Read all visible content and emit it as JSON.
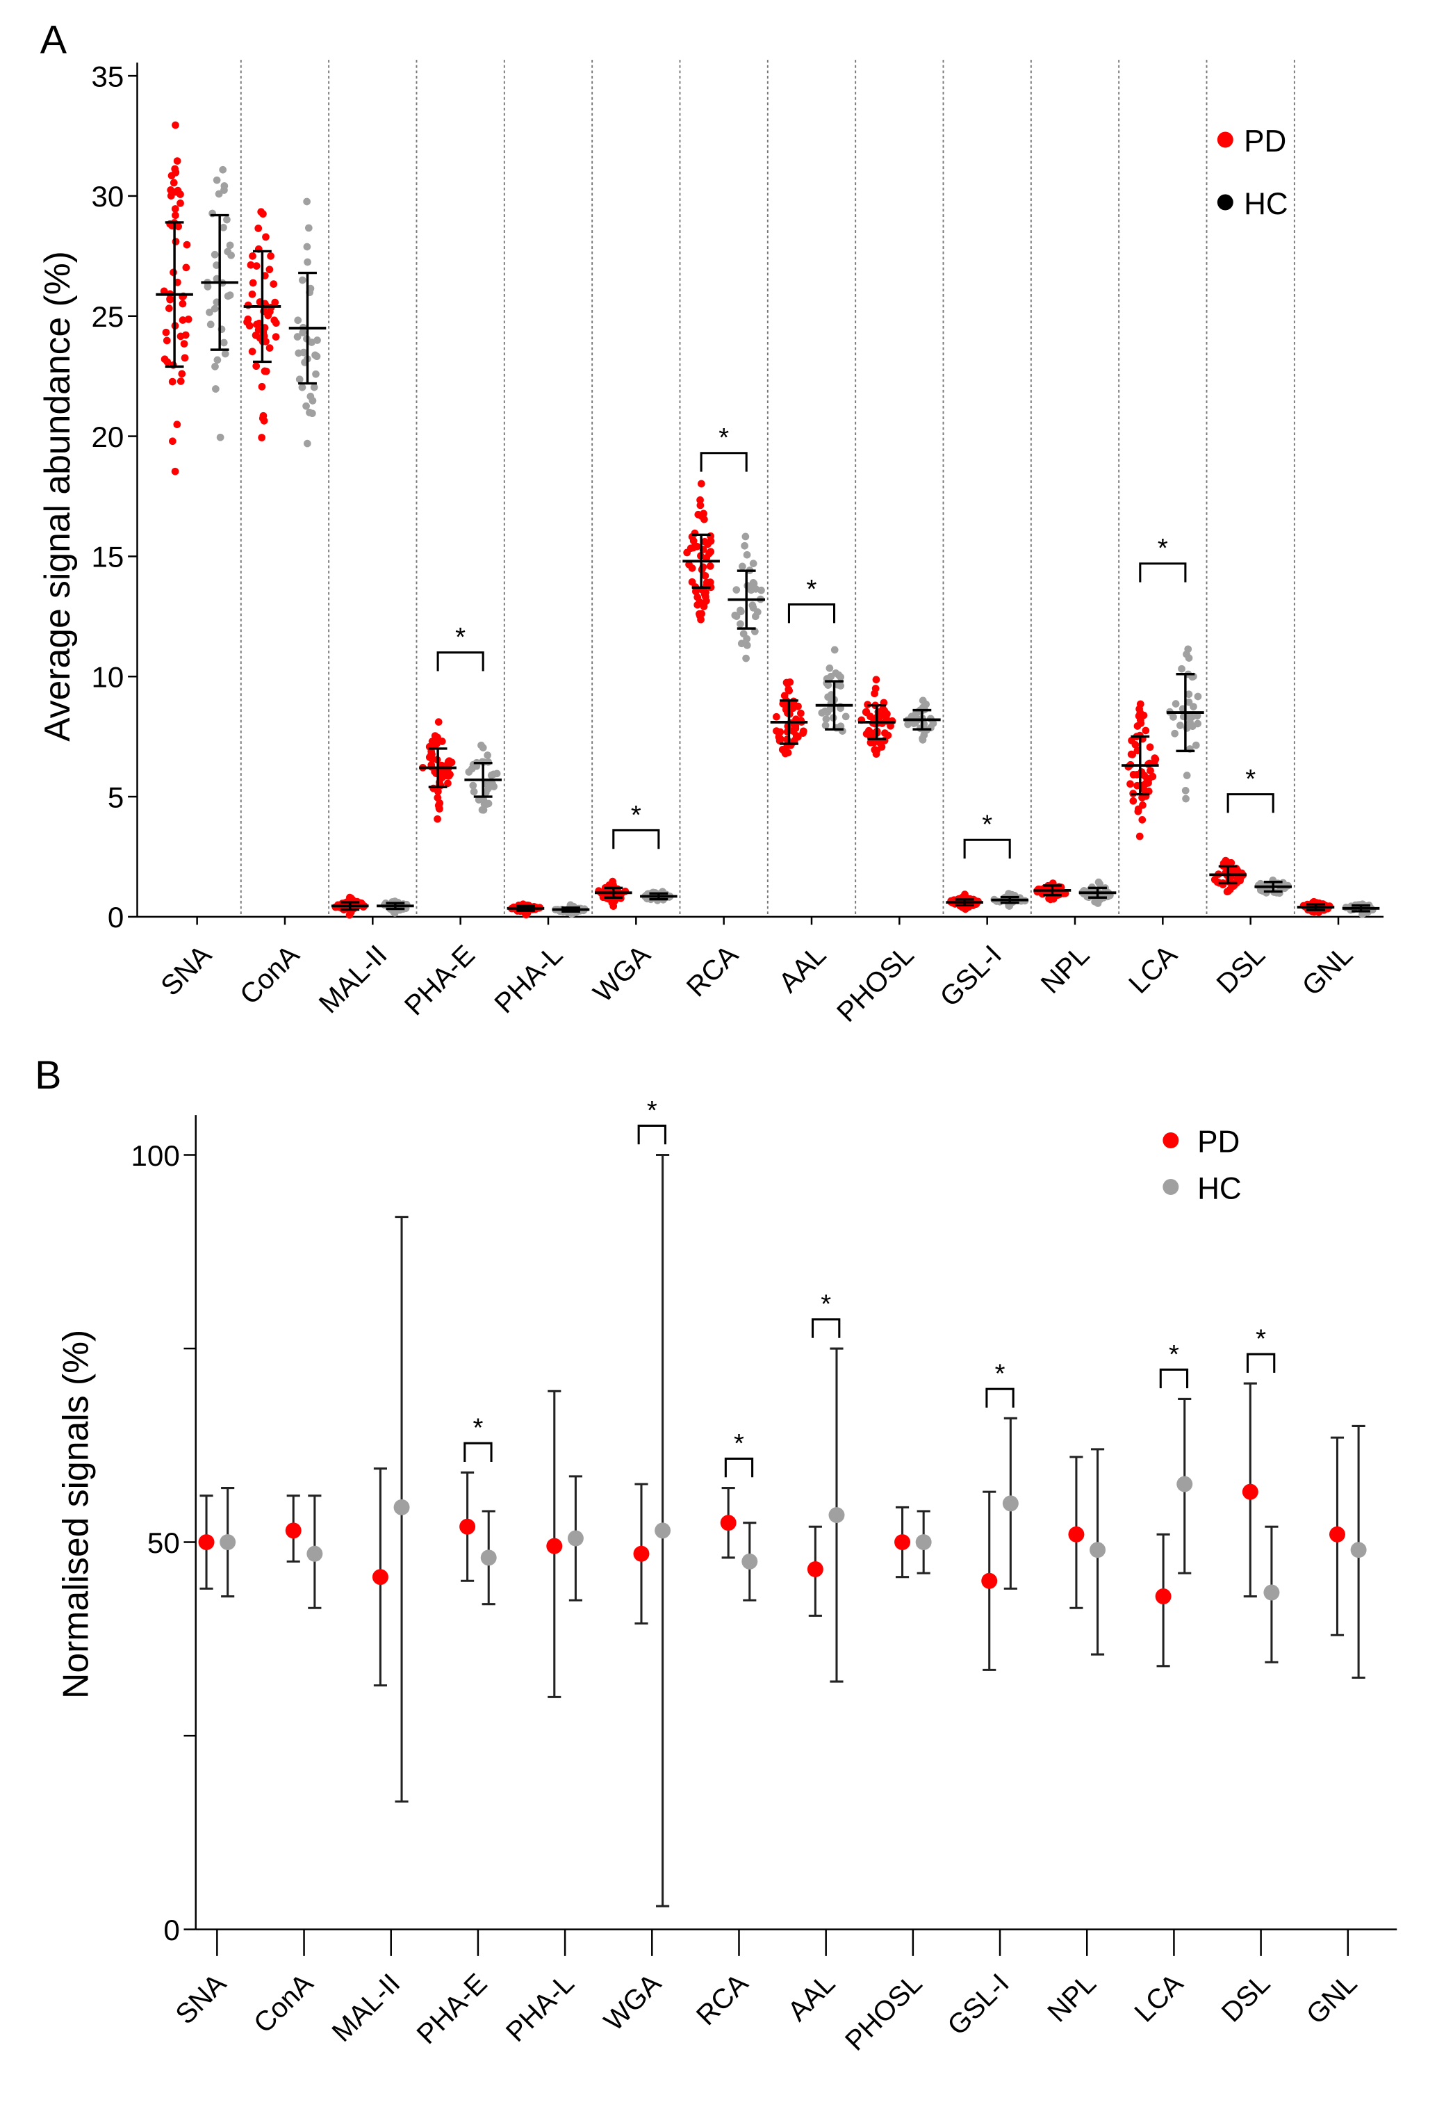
{
  "chart_data": [
    {
      "panel_label": "A",
      "type": "scatter",
      "title": "",
      "xlabel": "",
      "ylabel": "Average signal abundance (%)",
      "ylim": [
        0,
        35
      ],
      "yticks": [
        "0",
        "5",
        "10",
        "15",
        "20",
        "25",
        "30",
        "35"
      ],
      "yticks_values": [
        0,
        5,
        10,
        15,
        20,
        25,
        30,
        35
      ],
      "grid": "vertical dotted separators between categories",
      "legend": {
        "placement": "top-right",
        "entries": [
          {
            "name": "PD",
            "color": "#ff0000"
          },
          {
            "name": "HC",
            "color": "#000000"
          }
        ]
      },
      "point_colors": {
        "PD": "#ff0000",
        "HC": "#a0a0a0"
      },
      "n": {
        "PD": 50,
        "HC": 30
      },
      "categories": [
        "SNA",
        "ConA",
        "MAL-II",
        "PHA-E",
        "PHA-L",
        "WGA",
        "RCA",
        "AAL",
        "PHOSL",
        "GSL-I",
        "NPL",
        "LCA",
        "DSL",
        "GNL"
      ],
      "series": [
        {
          "name": "PD",
          "mean": [
            25.9,
            25.4,
            0.45,
            6.2,
            0.35,
            1.0,
            14.8,
            8.1,
            8.1,
            0.6,
            1.1,
            6.3,
            1.75,
            0.4
          ],
          "sd": [
            3.0,
            2.3,
            0.15,
            0.8,
            0.1,
            0.2,
            1.1,
            0.9,
            0.7,
            0.12,
            0.2,
            1.2,
            0.35,
            0.12
          ]
        },
        {
          "name": "HC",
          "mean": [
            26.4,
            24.5,
            0.45,
            5.7,
            0.3,
            0.85,
            13.2,
            8.8,
            8.2,
            0.7,
            1.0,
            8.5,
            1.25,
            0.35
          ],
          "sd": [
            2.8,
            2.3,
            0.12,
            0.7,
            0.08,
            0.12,
            1.2,
            1.0,
            0.4,
            0.12,
            0.2,
            1.6,
            0.2,
            0.12
          ]
        }
      ],
      "significance": [
        {
          "category": "PHA-E",
          "label": "*",
          "bracket_value": 11.0
        },
        {
          "category": "WGA",
          "label": "*",
          "bracket_value": 3.6
        },
        {
          "category": "RCA",
          "label": "*",
          "bracket_value": 19.3
        },
        {
          "category": "AAL",
          "label": "*",
          "bracket_value": 13.0
        },
        {
          "category": "GSL-I",
          "label": "*",
          "bracket_value": 3.2
        },
        {
          "category": "LCA",
          "label": "*",
          "bracket_value": 14.7
        },
        {
          "category": "DSL",
          "label": "*",
          "bracket_value": 5.1
        }
      ]
    },
    {
      "panel_label": "B",
      "type": "scatter",
      "title": "",
      "xlabel": "",
      "ylabel": "Normalised signals (%)",
      "ylim": [
        0,
        100
      ],
      "yticks": [
        "0",
        "",
        "50",
        "",
        "100"
      ],
      "yticks_values": [
        0,
        25,
        50,
        75,
        100
      ],
      "legend": {
        "placement": "top-right",
        "entries": [
          {
            "name": "PD",
            "color": "#ff0000"
          },
          {
            "name": "HC",
            "color": "#a0a0a0"
          }
        ]
      },
      "categories": [
        "SNA",
        "ConA",
        "MAL-II",
        "PHA-E",
        "PHA-L",
        "WGA",
        "RCA",
        "AAL",
        "PHOSL",
        "GSL-I",
        "NPL",
        "LCA",
        "DSL",
        "GNL"
      ],
      "series": [
        {
          "name": "PD",
          "value": [
            50,
            51.5,
            45.5,
            52,
            49.5,
            48.5,
            52.5,
            46.5,
            50,
            45,
            51,
            43,
            56.5,
            51
          ],
          "low": [
            44,
            47.5,
            31.5,
            45,
            30,
            39.5,
            48,
            40.5,
            45.5,
            33.5,
            41.5,
            34,
            43,
            38
          ],
          "high": [
            56,
            56,
            59.5,
            59,
            69.5,
            57.5,
            57,
            52,
            54.5,
            56.5,
            61,
            51,
            70.5,
            63.5
          ]
        },
        {
          "name": "HC",
          "value": [
            50,
            48.5,
            54.5,
            48,
            50.5,
            51.5,
            47.5,
            53.5,
            50,
            55,
            49,
            57.5,
            43.5,
            49
          ],
          "low": [
            43,
            41.5,
            16.5,
            42,
            42.5,
            3,
            42.5,
            32,
            46,
            44,
            35.5,
            46,
            34.5,
            32.5
          ],
          "high": [
            57,
            56,
            92,
            54,
            58.5,
            100,
            52.5,
            75,
            54,
            66,
            62,
            68.5,
            52,
            65
          ]
        }
      ],
      "significance": [
        {
          "category": "PHA-E",
          "label": "*"
        },
        {
          "category": "WGA",
          "label": "*"
        },
        {
          "category": "RCA",
          "label": "*"
        },
        {
          "category": "AAL",
          "label": "*"
        },
        {
          "category": "GSL-I",
          "label": "*"
        },
        {
          "category": "LCA",
          "label": "*"
        },
        {
          "category": "DSL",
          "label": "*"
        }
      ]
    }
  ]
}
